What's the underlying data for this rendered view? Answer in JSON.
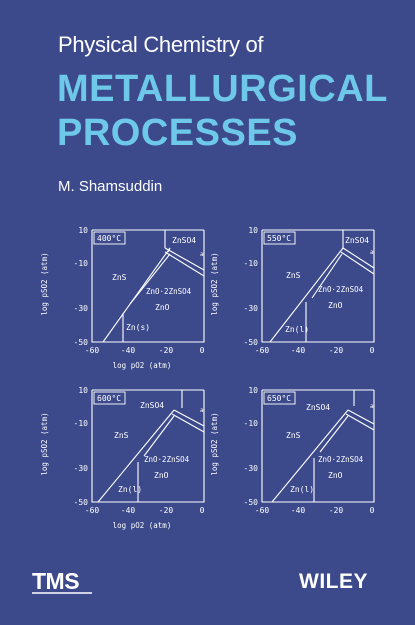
{
  "book": {
    "title_line1": "Physical Chemistry of",
    "title_line2": "METALLURGICAL",
    "title_line3": "PROCESSES",
    "author": "M. Shamsuddin"
  },
  "colors": {
    "background": "#3c4a8c",
    "title_accent": "#6ec8ea",
    "text": "#ffffff"
  },
  "diagrams": {
    "y_label": "log pSO2 (atm)",
    "x_label": "log pO2 (atm)",
    "y_ticks": [
      "10",
      "-10",
      "-30",
      "-50"
    ],
    "x_ticks": [
      "-60",
      "-40",
      "-20",
      "0"
    ],
    "panels": [
      {
        "temperature": "400°C",
        "metal_label": "Zn(s)",
        "zns": "ZnS",
        "zno": "ZnO",
        "zno_znso4": "ZnO·2ZnSO4",
        "znso4": "ZnSO4",
        "small_a": "a"
      },
      {
        "temperature": "550°C",
        "metal_label": "Zn(l)",
        "zns": "ZnS",
        "zno": "ZnO",
        "zno_znso4": "ZnO·2ZnSO4",
        "znso4": "ZnSO4",
        "small_a": "a"
      },
      {
        "temperature": "600°C",
        "metal_label": "Zn(l)",
        "zns": "ZnS",
        "zno": "ZnO",
        "zno_znso4": "ZnO·2ZnSO4",
        "znso4": "ZnSO4",
        "small_a": "a"
      },
      {
        "temperature": "650°C",
        "metal_label": "Zn(l)",
        "zns": "ZnS",
        "zno": "ZnO",
        "zno_znso4": "ZnO·2ZnSO4",
        "znso4": "ZnSO4",
        "small_a": "a"
      }
    ]
  },
  "publishers": {
    "tms": "TMS",
    "wiley": "WILEY"
  }
}
